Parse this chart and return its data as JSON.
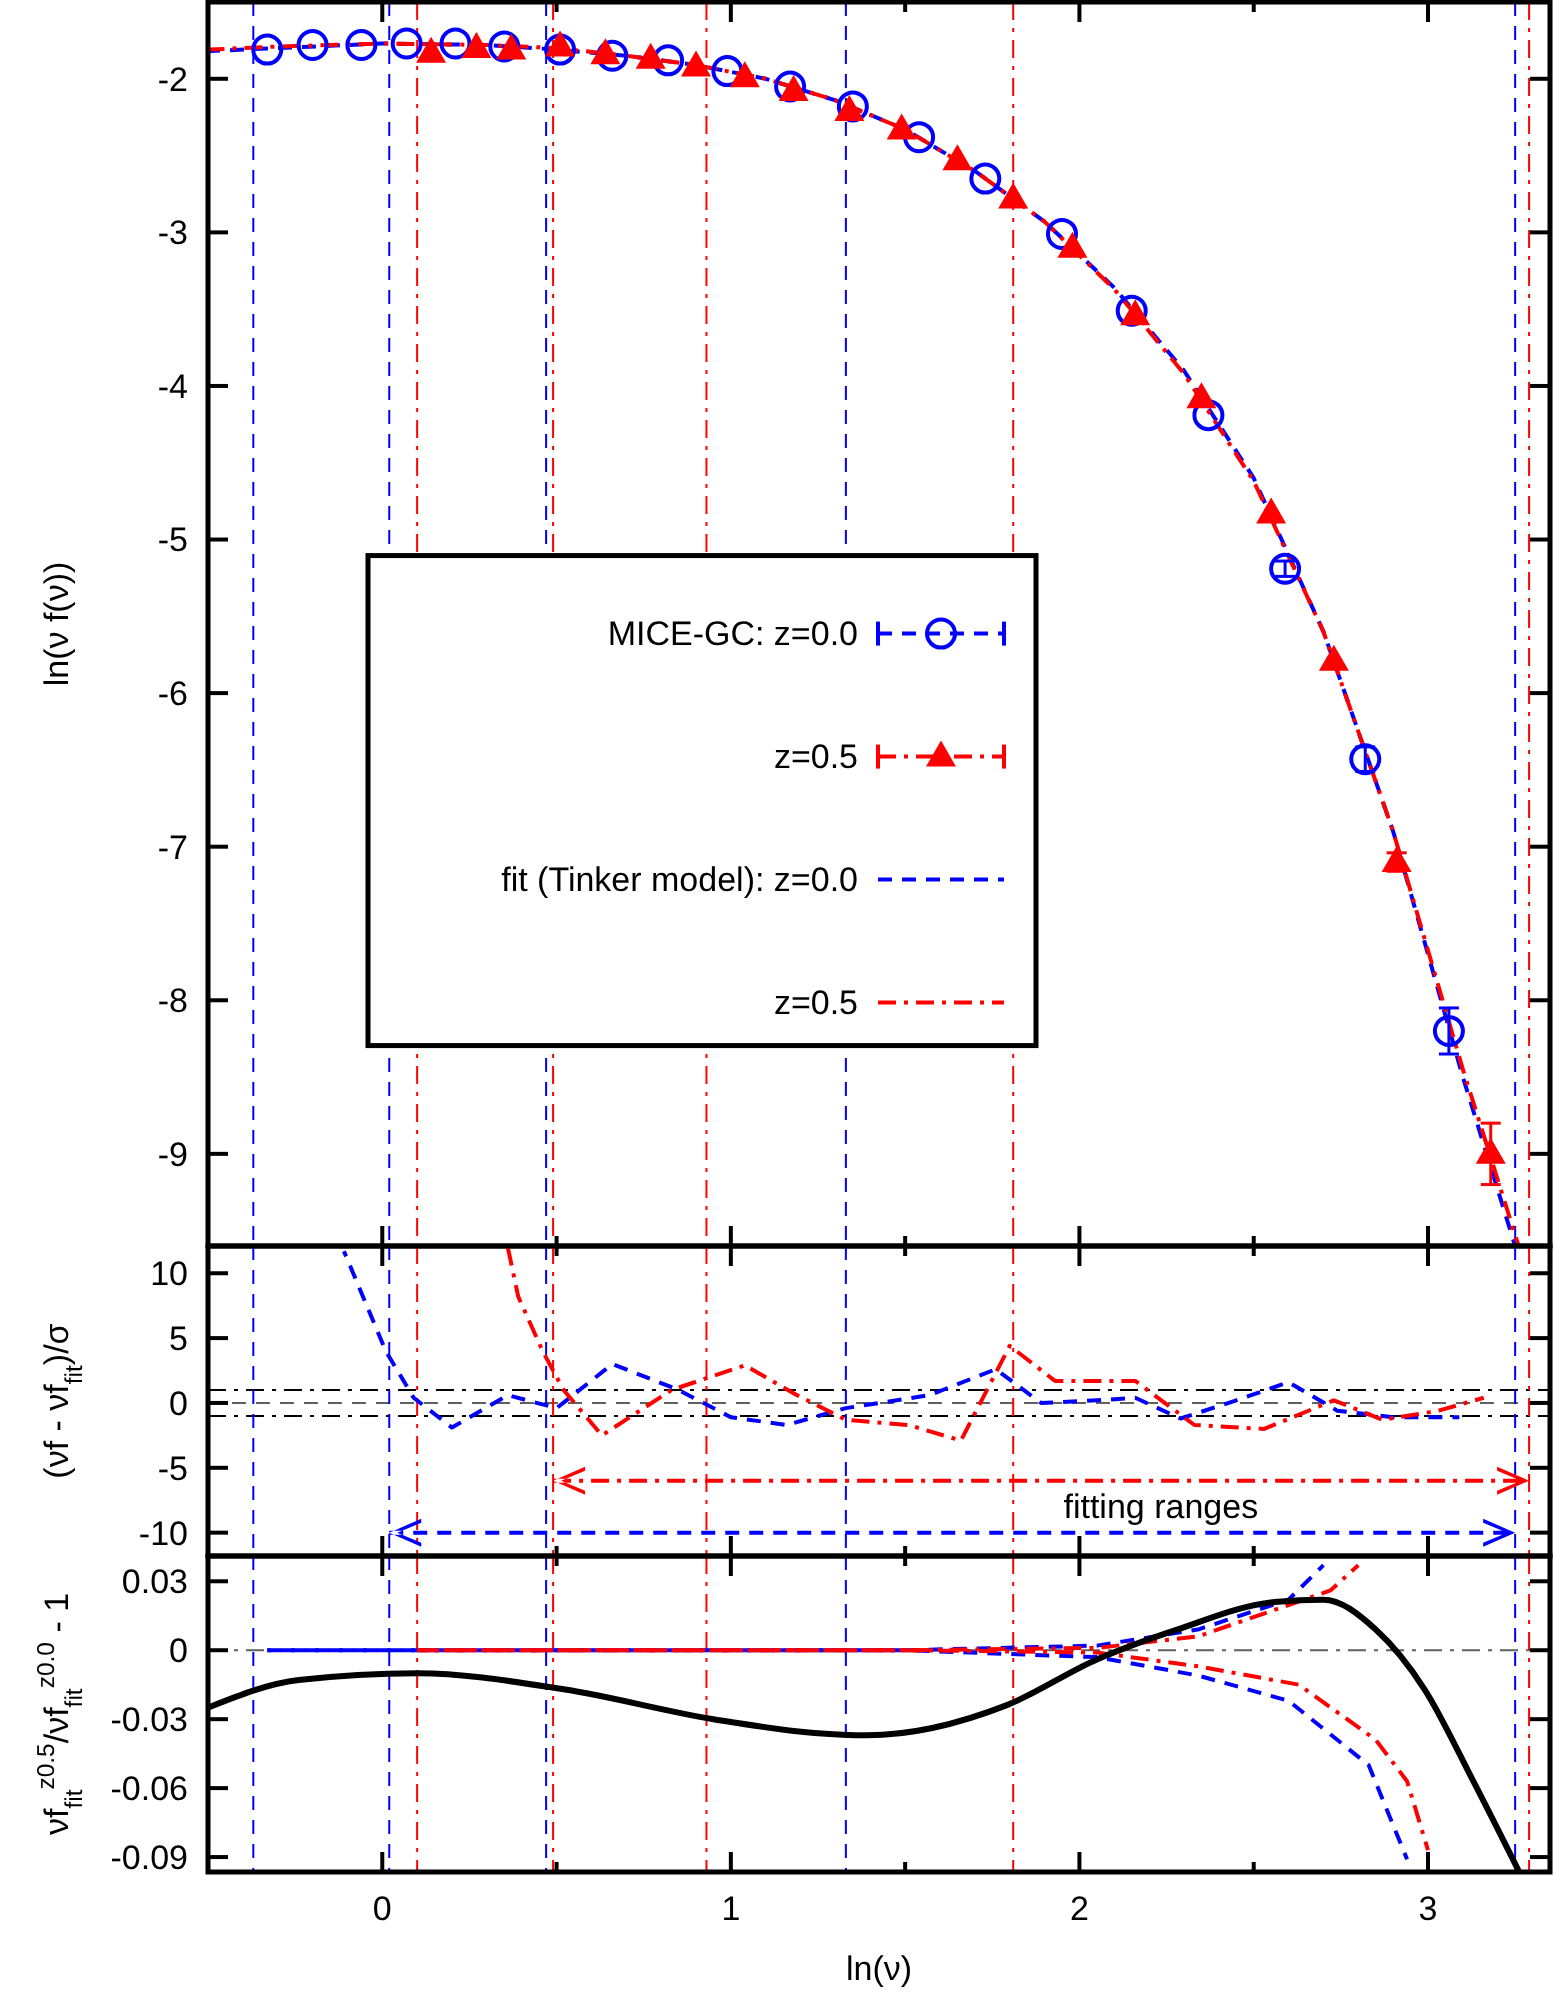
{
  "chart_data": [
    {
      "type": "scatter",
      "ylabel": "ln(ν f(ν))",
      "xlim": [
        -0.5,
        3.35
      ],
      "ylim": [
        -9.6,
        -1.5
      ],
      "xticks": [
        0,
        {
          "value": 0.5,
          "label": null
        },
        1,
        {
          "value": 1.5,
          "label": null
        },
        2,
        {
          "value": 2.5,
          "label": null
        },
        3
      ],
      "yticks": [
        -2,
        -3,
        -4,
        -5,
        -6,
        -7,
        -8,
        -9
      ],
      "tick_labels": "y",
      "legend": "left",
      "ref_lines": [
        {
          "axis": "x",
          "value": -0.37,
          "color": "#0000ff",
          "line_style": "dashed"
        },
        {
          "axis": "x",
          "value": 0.02,
          "color": "#0000ff",
          "line_style": "dashed"
        },
        {
          "axis": "x",
          "value": 0.47,
          "color": "#0000ff",
          "line_style": "dashed"
        },
        {
          "axis": "x",
          "value": 1.33,
          "color": "#0000ff",
          "line_style": "dashed"
        },
        {
          "axis": "x",
          "value": 3.25,
          "color": "#0000ff",
          "line_style": "dashed"
        },
        {
          "axis": "x",
          "value": 0.1,
          "color": "#ff0000",
          "line_style": "dashdot"
        },
        {
          "axis": "x",
          "value": 0.49,
          "color": "#ff0000",
          "line_style": "dashdot"
        },
        {
          "axis": "x",
          "value": 0.93,
          "color": "#ff0000",
          "line_style": "dashdot"
        },
        {
          "axis": "x",
          "value": 1.81,
          "color": "#ff0000",
          "line_style": "dashdot"
        },
        {
          "axis": "x",
          "value": 3.29,
          "color": "#ff0000",
          "line_style": "dashdot"
        }
      ],
      "series": [
        {
          "name": "MICE-GC: z=0.0",
          "marker": "circle",
          "color": "#0000ff",
          "x": [
            -0.33,
            -0.2,
            -0.06,
            0.07,
            0.21,
            0.35,
            0.51,
            0.66,
            0.82,
            0.99,
            1.17,
            1.35,
            1.54,
            1.73,
            1.95,
            2.15,
            2.37,
            2.59,
            2.82,
            3.06
          ],
          "values": [
            -1.81,
            -1.78,
            -1.78,
            -1.77,
            -1.77,
            -1.79,
            -1.81,
            -1.85,
            -1.88,
            -1.95,
            -2.05,
            -2.18,
            -2.38,
            -2.65,
            -3.01,
            -3.51,
            -4.19,
            -5.19,
            -6.43,
            -8.2
          ],
          "errors": [
            null,
            null,
            null,
            null,
            null,
            null,
            null,
            null,
            null,
            null,
            null,
            null,
            null,
            null,
            null,
            null,
            null,
            0.05,
            0.08,
            0.15
          ]
        },
        {
          "name": "z=0.5",
          "marker": "triangle",
          "color": "#ff0000",
          "x": [
            0.14,
            0.27,
            0.37,
            0.51,
            0.64,
            0.77,
            0.9,
            1.04,
            1.18,
            1.34,
            1.49,
            1.65,
            1.81,
            1.98,
            2.16,
            2.35,
            2.55,
            2.73,
            2.91,
            3.18
          ],
          "values": [
            -1.83,
            -1.8,
            -1.81,
            -1.79,
            -1.84,
            -1.87,
            -1.92,
            -1.99,
            -2.08,
            -2.21,
            -2.33,
            -2.53,
            -2.78,
            -3.1,
            -3.54,
            -4.08,
            -4.83,
            -5.79,
            -7.1,
            -9.0
          ],
          "errors": [
            null,
            null,
            null,
            null,
            null,
            null,
            null,
            null,
            null,
            null,
            null,
            null,
            null,
            null,
            null,
            null,
            null,
            null,
            0.06,
            0.2
          ]
        },
        {
          "name": "fit (Tinker model): z=0.0",
          "type": "line",
          "line_style": "dashed",
          "color": "#0000ff",
          "x": [
            -0.5,
            -0.3,
            0,
            0.3,
            0.5,
            0.7,
            0.9,
            1.1,
            1.3,
            1.5,
            1.7,
            1.9,
            2.1,
            2.3,
            2.5,
            2.7,
            2.9,
            3.1,
            3.25
          ],
          "values": [
            -1.82,
            -1.8,
            -1.77,
            -1.78,
            -1.81,
            -1.85,
            -1.91,
            -2.0,
            -2.14,
            -2.33,
            -2.6,
            -2.93,
            -3.36,
            -3.9,
            -4.6,
            -5.6,
            -6.9,
            -8.5,
            -9.6
          ]
        },
        {
          "name": "z=0.5",
          "type": "line",
          "line_style": "dashdot",
          "color": "#ff0000",
          "x": [
            -0.5,
            -0.3,
            0,
            0.3,
            0.5,
            0.7,
            0.9,
            1.1,
            1.3,
            1.5,
            1.7,
            1.9,
            2.1,
            2.3,
            2.5,
            2.7,
            2.9,
            3.1,
            3.26
          ],
          "values": [
            -1.81,
            -1.79,
            -1.77,
            -1.78,
            -1.8,
            -1.85,
            -1.91,
            -2.0,
            -2.14,
            -2.33,
            -2.6,
            -2.93,
            -3.37,
            -3.92,
            -4.62,
            -5.6,
            -6.9,
            -8.45,
            -9.6
          ]
        }
      ]
    },
    {
      "type": "line",
      "ylabel": "(νf - νf$_{fit}$)/σ",
      "xlim": [
        -0.5,
        3.35
      ],
      "ylim": [
        -11.8,
        12.1
      ],
      "xticks": [
        0,
        {
          "value": 0.5,
          "label": null
        },
        1,
        {
          "value": 1.5,
          "label": null
        },
        2,
        {
          "value": 2.5,
          "label": null
        },
        3
      ],
      "yticks": [
        10,
        5,
        0,
        -5,
        -10
      ],
      "tick_labels": "y",
      "annotations": [
        "fitting ranges"
      ],
      "ref_lines": [
        {
          "axis": "y",
          "value": 0,
          "color": "#606060",
          "line_style": "dashed"
        },
        {
          "axis": "y",
          "value": 1,
          "color": "#000000",
          "line_style": "dashdot"
        },
        {
          "axis": "y",
          "value": -1,
          "color": "#000000",
          "line_style": "dashdot"
        },
        {
          "axis": "x",
          "value": -0.37,
          "color": "#0000ff",
          "line_style": "dashed"
        },
        {
          "axis": "x",
          "value": 0.02,
          "color": "#0000ff",
          "line_style": "dashed"
        },
        {
          "axis": "x",
          "value": 0.47,
          "color": "#0000ff",
          "line_style": "dashed"
        },
        {
          "axis": "x",
          "value": 1.33,
          "color": "#0000ff",
          "line_style": "dashed"
        },
        {
          "axis": "x",
          "value": 3.25,
          "color": "#0000ff",
          "line_style": "dashed"
        },
        {
          "axis": "x",
          "value": 0.1,
          "color": "#ff0000",
          "line_style": "dashdot"
        },
        {
          "axis": "x",
          "value": 0.49,
          "color": "#ff0000",
          "line_style": "dashdot"
        },
        {
          "axis": "x",
          "value": 0.93,
          "color": "#ff0000",
          "line_style": "dashdot"
        },
        {
          "axis": "x",
          "value": 1.81,
          "color": "#ff0000",
          "line_style": "dashdot"
        },
        {
          "axis": "x",
          "value": 3.29,
          "color": "#ff0000",
          "line_style": "dashdot"
        }
      ],
      "series": [
        {
          "line_style": "dashed",
          "color": "#0000ff",
          "x": [
            -0.11,
            0.01,
            0.09,
            0.2,
            0.36,
            0.5,
            0.66,
            0.85,
            1.0,
            1.16,
            1.33,
            1.57,
            1.76,
            1.89,
            2.05,
            2.16,
            2.29,
            2.45,
            2.6,
            2.74,
            2.9,
            3.09
          ],
          "values": [
            11.7,
            4.0,
            0.4,
            -1.9,
            0.6,
            -0.4,
            3.0,
            1.0,
            -1.1,
            -1.7,
            -0.4,
            0.6,
            2.6,
            0.0,
            0.2,
            0.4,
            -1.2,
            0.2,
            1.6,
            -0.6,
            -1.1,
            -1.1
          ]
        },
        {
          "line_style": "dashdot",
          "color": "#ff0000",
          "x": [
            0.36,
            0.39,
            0.46,
            0.52,
            0.63,
            0.83,
            1.04,
            1.19,
            1.33,
            1.51,
            1.66,
            1.8,
            1.93,
            2.16,
            2.33,
            2.53,
            2.73,
            2.87,
            3.03,
            3.16
          ],
          "values": [
            12.0,
            8.2,
            4.0,
            1.0,
            -2.5,
            1.0,
            2.9,
            0.6,
            -1.3,
            -1.7,
            -2.9,
            4.4,
            1.7,
            1.7,
            -1.7,
            -2.0,
            0.2,
            -1.3,
            -0.6,
            0.4
          ]
        }
      ]
    },
    {
      "type": "line",
      "xlabel": "ln(ν)",
      "ylabel": "νf$_{fit}$$^{z0.5}$/νf$_{fit}$$^{z0.0}$ - 1",
      "xlim": [
        -0.5,
        3.35
      ],
      "ylim": [
        -0.0965,
        0.041
      ],
      "xticks": [
        0,
        {
          "value": 0.5,
          "label": null
        },
        1,
        {
          "value": 1.5,
          "label": null
        },
        2,
        {
          "value": 2.5,
          "label": null
        },
        3
      ],
      "yticks": [
        0.03,
        0,
        -0.03,
        -0.06,
        -0.09
      ],
      "ref_lines": [
        {
          "axis": "y",
          "value": 0,
          "color": "#606060",
          "line_style": "dashdot"
        },
        {
          "axis": "x",
          "value": -0.37,
          "color": "#0000ff",
          "line_style": "dashed"
        },
        {
          "axis": "x",
          "value": 0.02,
          "color": "#0000ff",
          "line_style": "dashed"
        },
        {
          "axis": "x",
          "value": 0.47,
          "color": "#0000ff",
          "line_style": "dashed"
        },
        {
          "axis": "x",
          "value": 1.33,
          "color": "#0000ff",
          "line_style": "dashed"
        },
        {
          "axis": "x",
          "value": 3.25,
          "color": "#0000ff",
          "line_style": "dashed"
        },
        {
          "axis": "x",
          "value": 0.1,
          "color": "#ff0000",
          "line_style": "dashdot"
        },
        {
          "axis": "x",
          "value": 0.49,
          "color": "#ff0000",
          "line_style": "dashdot"
        },
        {
          "axis": "x",
          "value": 0.93,
          "color": "#ff0000",
          "line_style": "dashdot"
        },
        {
          "axis": "x",
          "value": 1.81,
          "color": "#ff0000",
          "line_style": "dashdot"
        },
        {
          "axis": "x",
          "value": 3.29,
          "color": "#ff0000",
          "line_style": "dashdot"
        }
      ],
      "series": [
        {
          "line_style": "dashed",
          "color": "#0000ff",
          "x": [
            -0.33,
            0.5,
            1.0,
            1.5,
            2.05,
            2.34,
            2.6,
            2.7
          ],
          "values": [
            0,
            0,
            0,
            0,
            0.002,
            0.009,
            0.022,
            0.037
          ]
        },
        {
          "line_style": "dashed",
          "color": "#0000ff",
          "x": [
            -0.33,
            0.5,
            1.0,
            1.5,
            2.05,
            2.34,
            2.6,
            2.83,
            2.94
          ],
          "values": [
            0,
            0,
            0,
            0,
            -0.003,
            -0.011,
            -0.022,
            -0.05,
            -0.091
          ]
        },
        {
          "line_style": "dashdot",
          "color": "#ff0000",
          "x": [
            0.1,
            0.5,
            1.0,
            1.5,
            2.05,
            2.34,
            2.72,
            2.8
          ],
          "values": [
            0,
            0,
            0,
            0,
            0.001,
            0.006,
            0.026,
            0.037
          ]
        },
        {
          "line_style": "dashdot",
          "color": "#ff0000",
          "x": [
            0.1,
            0.5,
            1.0,
            1.5,
            2.05,
            2.34,
            2.63,
            2.85,
            2.94,
            3.0
          ],
          "values": [
            0,
            0,
            0,
            0,
            -0.001,
            -0.007,
            -0.015,
            -0.039,
            -0.057,
            -0.087
          ]
        },
        {
          "line_style": "solid",
          "color": "#000000",
          "x": [
            -0.5,
            -0.24,
            0.1,
            0.52,
            0.95,
            1.24,
            1.39,
            1.79,
            2.05,
            2.28,
            2.56,
            2.7,
            2.85,
            2.99,
            3.13,
            3.26
          ],
          "values": [
            -0.025,
            -0.013,
            -0.01,
            -0.017,
            -0.03,
            -0.036,
            -0.037,
            -0.024,
            -0.004,
            0.009,
            0.021,
            0.022,
            0.009,
            -0.017,
            -0.057,
            -0.096
          ]
        }
      ]
    }
  ]
}
